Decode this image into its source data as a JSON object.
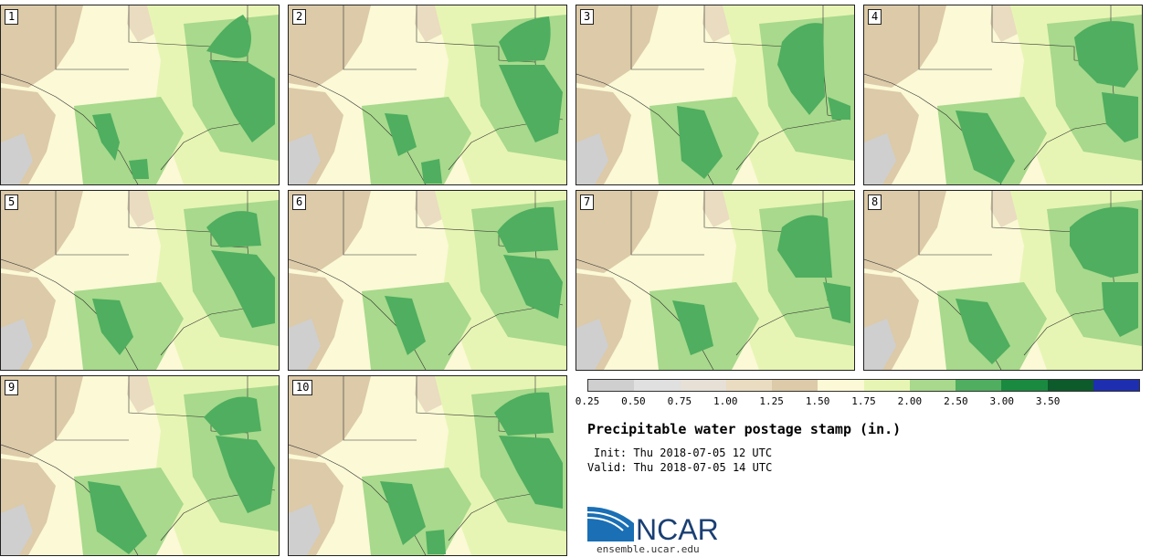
{
  "panels": [
    {
      "label": "1"
    },
    {
      "label": "2"
    },
    {
      "label": "3"
    },
    {
      "label": "4"
    },
    {
      "label": "5"
    },
    {
      "label": "6"
    },
    {
      "label": "7"
    },
    {
      "label": "8"
    },
    {
      "label": "9"
    },
    {
      "label": "10"
    }
  ],
  "legend": {
    "ticks": [
      "0.25",
      "0.50",
      "0.75",
      "1.00",
      "1.25",
      "1.50",
      "1.75",
      "2.00",
      "2.50",
      "3.00",
      "3.50"
    ],
    "colors": [
      "#cfcfcf",
      "#e0e0e0",
      "#e6e0d6",
      "#e9dcc0",
      "#dccaa8",
      "#fbf9d6",
      "#e7f5b4",
      "#a8d98c",
      "#4fae5f",
      "#1a8a40",
      "#0d5a2a",
      "#1d2fb0"
    ]
  },
  "title": "Precipitable water postage stamp (in.)",
  "init": "Init: Thu 2018-07-05 12 UTC",
  "valid": "Valid: Thu 2018-07-05 14 UTC",
  "logo": {
    "text": "NCAR",
    "url": "ensemble.ucar.edu"
  }
}
